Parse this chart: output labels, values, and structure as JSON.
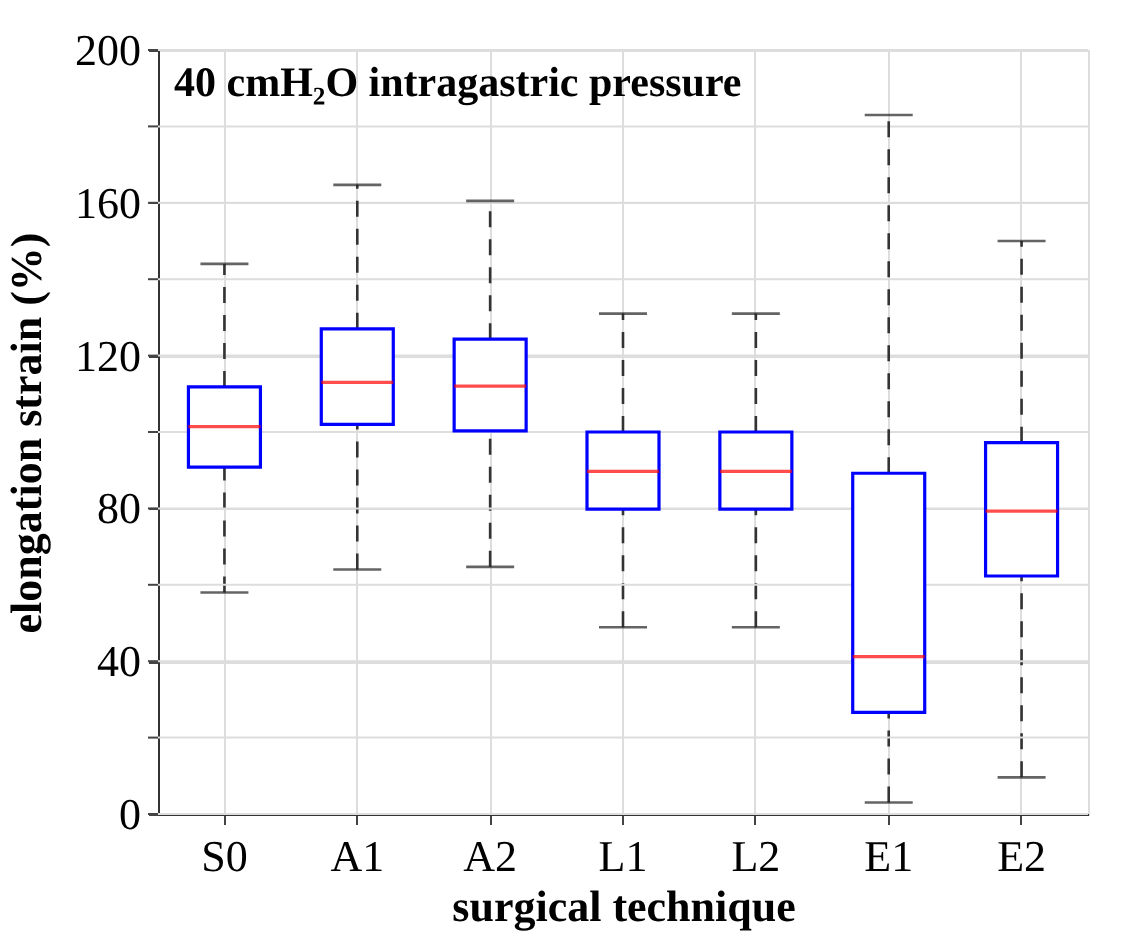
{
  "chart_data": {
    "type": "box",
    "title": "40 cmH₂O intragastric pressure",
    "xlabel": "surgical technique",
    "ylabel": "elongation strain (%)",
    "categories": [
      "S0",
      "A1",
      "A2",
      "L1",
      "L2",
      "E1",
      "E2"
    ],
    "series": [
      {
        "color": "#0000ff",
        "boxes": [
          {
            "low": 58,
            "q1": 90.8,
            "median": 101.4,
            "q3": 111.8,
            "high": 144
          },
          {
            "low": 64,
            "q1": 102,
            "median": 113,
            "q3": 127,
            "high": 164.7
          },
          {
            "low": 64.7,
            "q1": 100.3,
            "median": 112,
            "q3": 124.3,
            "high": 160.5
          },
          {
            "low": 48.9,
            "q1": 79.8,
            "median": 89.7,
            "q3": 100,
            "high": 131
          },
          {
            "low": 48.9,
            "q1": 79.8,
            "median": 89.7,
            "q3": 100,
            "high": 131
          },
          {
            "low": 3,
            "q1": 26.6,
            "median": 41.2,
            "q3": 89.2,
            "high": 183
          },
          {
            "low": 9.6,
            "q1": 62.3,
            "median": 79.3,
            "q3": 97.2,
            "high": 150
          }
        ]
      }
    ],
    "ylim": [
      0,
      200
    ],
    "yticks": [
      0,
      {
        "value": 20,
        "label": null
      },
      40,
      {
        "value": 60,
        "label": null
      },
      80,
      {
        "value": 100,
        "label": null
      },
      120,
      {
        "value": 140,
        "label": null
      },
      160,
      {
        "value": 180,
        "label": null
      },
      200
    ],
    "grid": true,
    "legend": false
  }
}
